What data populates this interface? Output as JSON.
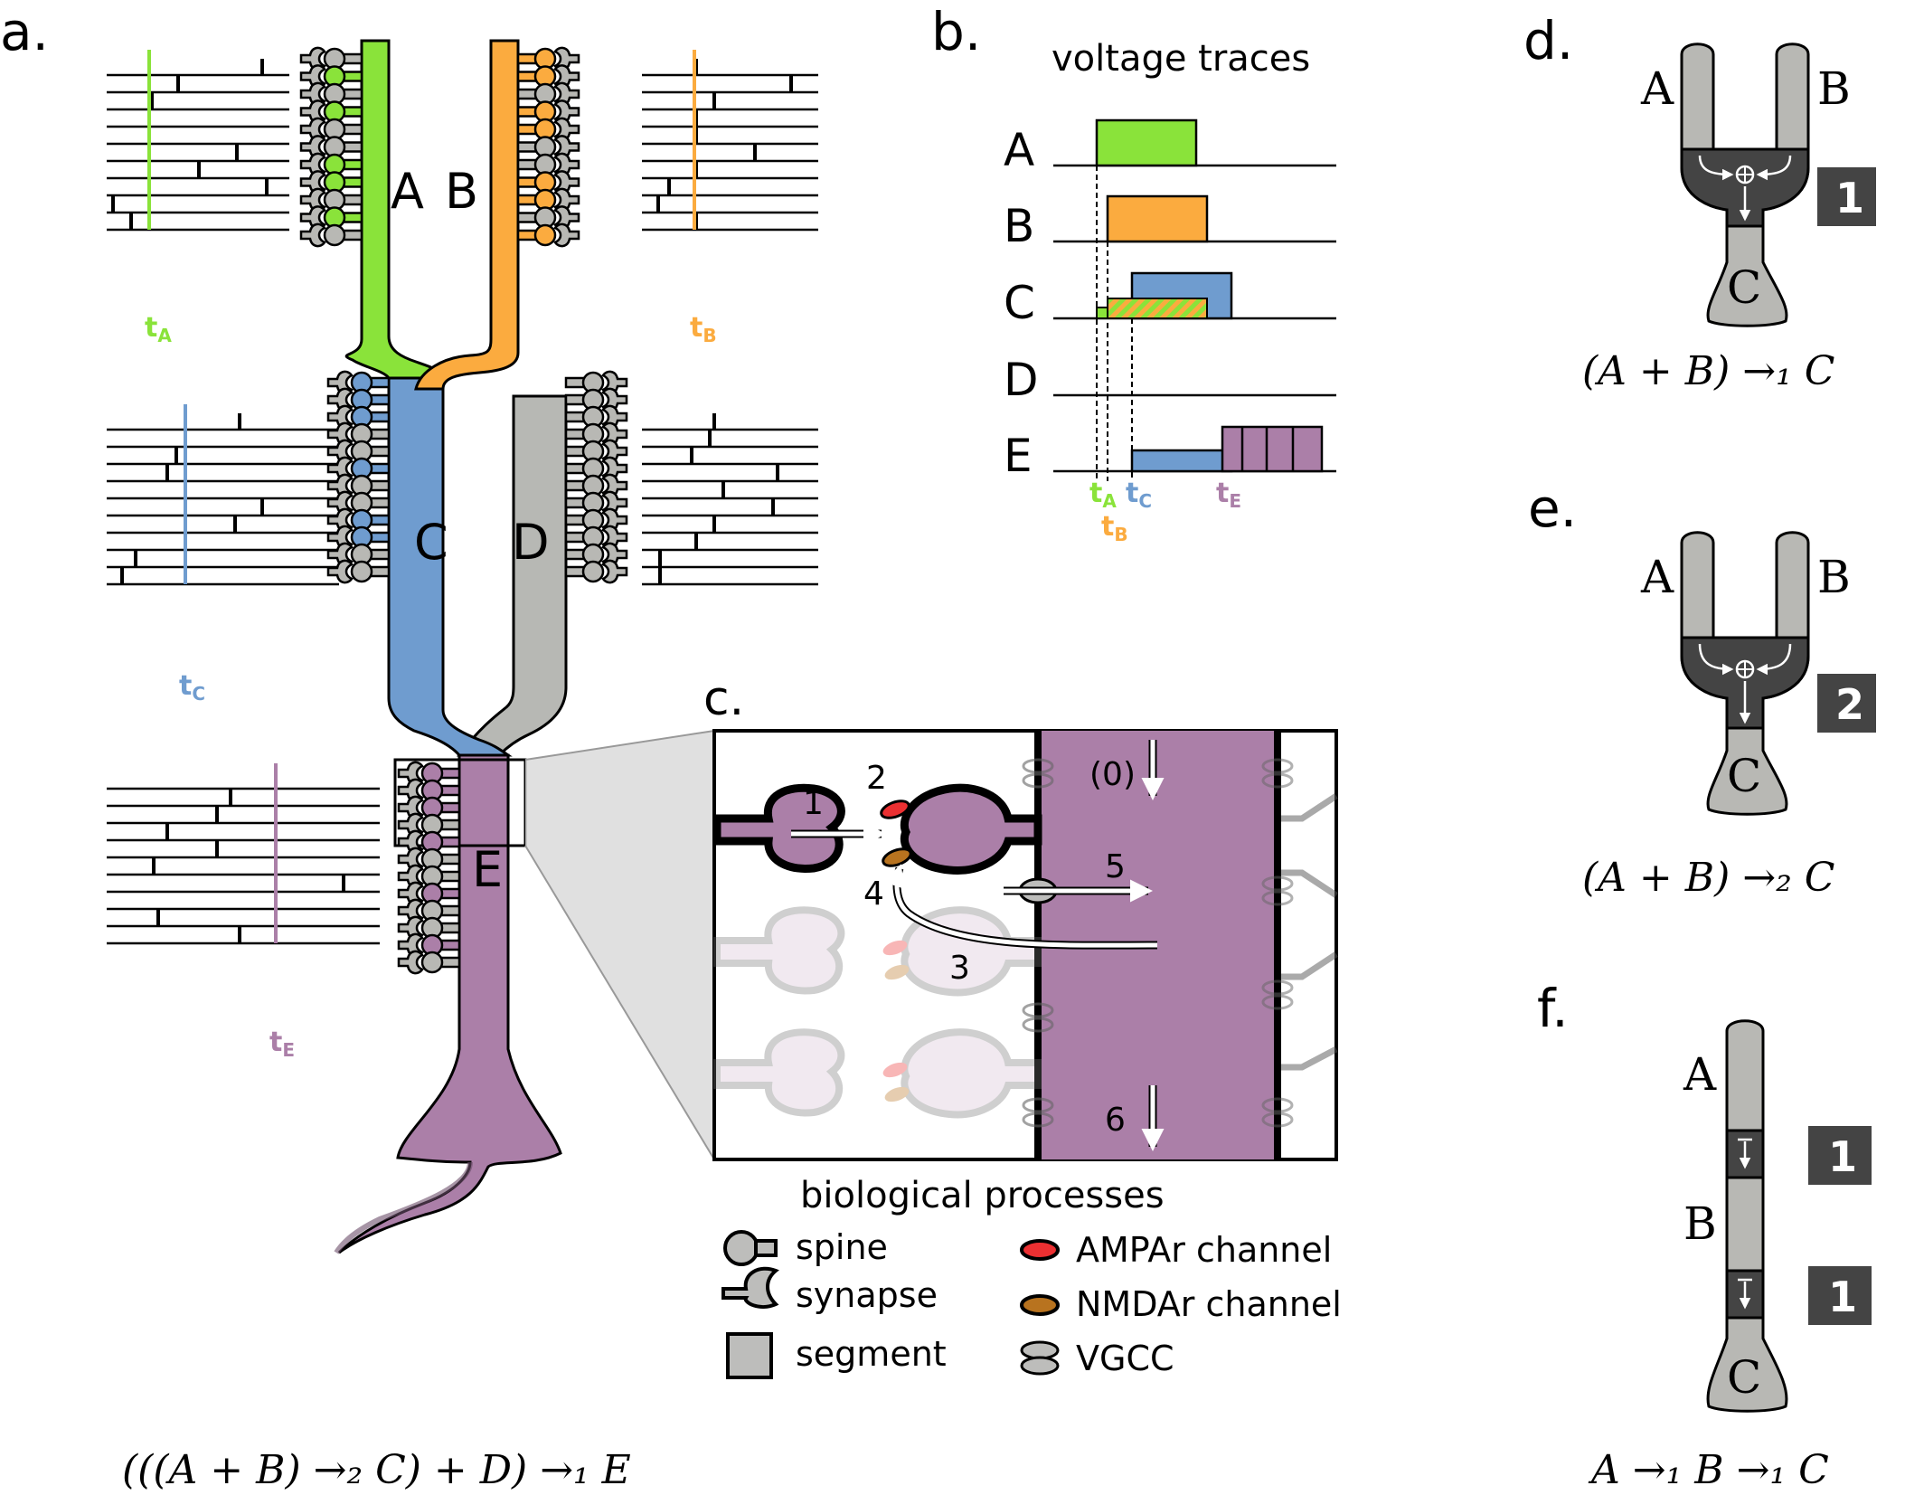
{
  "colors": {
    "A": "#8ae33a",
    "B": "#fbab3f",
    "C": "#6f9ccf",
    "D": "#b7b8b4",
    "E": "#ab7fa8",
    "AMPAr": "#ec3032",
    "NMDAr": "#b8731f",
    "VGCC": "#bdbdbb",
    "gray": "#b8b8b4",
    "dark": "#444444"
  },
  "panels": {
    "a": {
      "label": "a.",
      "formula": "(((A + B) →₂ C) + D) →₁ E"
    },
    "b": {
      "label": "b.",
      "title": "voltage traces"
    },
    "c": {
      "label": "c.",
      "caption": "biological processes"
    },
    "d": {
      "label": "d.",
      "badge": "1",
      "formula": "(A + B) →₁ C"
    },
    "e": {
      "label": "e.",
      "badge": "2",
      "formula": "(A + B) →₂ C"
    },
    "f": {
      "label": "f.",
      "badge1": "1",
      "badge2": "1",
      "formula": "A →₁ B →₁ C"
    }
  },
  "branches": {
    "A": "A",
    "B": "B",
    "C": "C",
    "D": "D",
    "E": "E"
  },
  "time_labels": {
    "tA": "t",
    "tA_sub": "A",
    "tB": "t",
    "tB_sub": "B",
    "tC": "t",
    "tC_sub": "C",
    "tE": "t",
    "tE_sub": "E"
  },
  "traces": {
    "rows": [
      "A",
      "B",
      "C",
      "D",
      "E"
    ]
  },
  "process_steps": [
    "(0)",
    "1",
    "2",
    "3",
    "4",
    "5",
    "6"
  ],
  "legend": {
    "spine": "spine",
    "synapse": "synapse",
    "segment": "segment",
    "ampar": "AMPAr channel",
    "nmdar": "NMDAr channel",
    "vgcc": "VGCC"
  },
  "schematic_labels": {
    "A": "A",
    "B": "B",
    "C": "C"
  }
}
